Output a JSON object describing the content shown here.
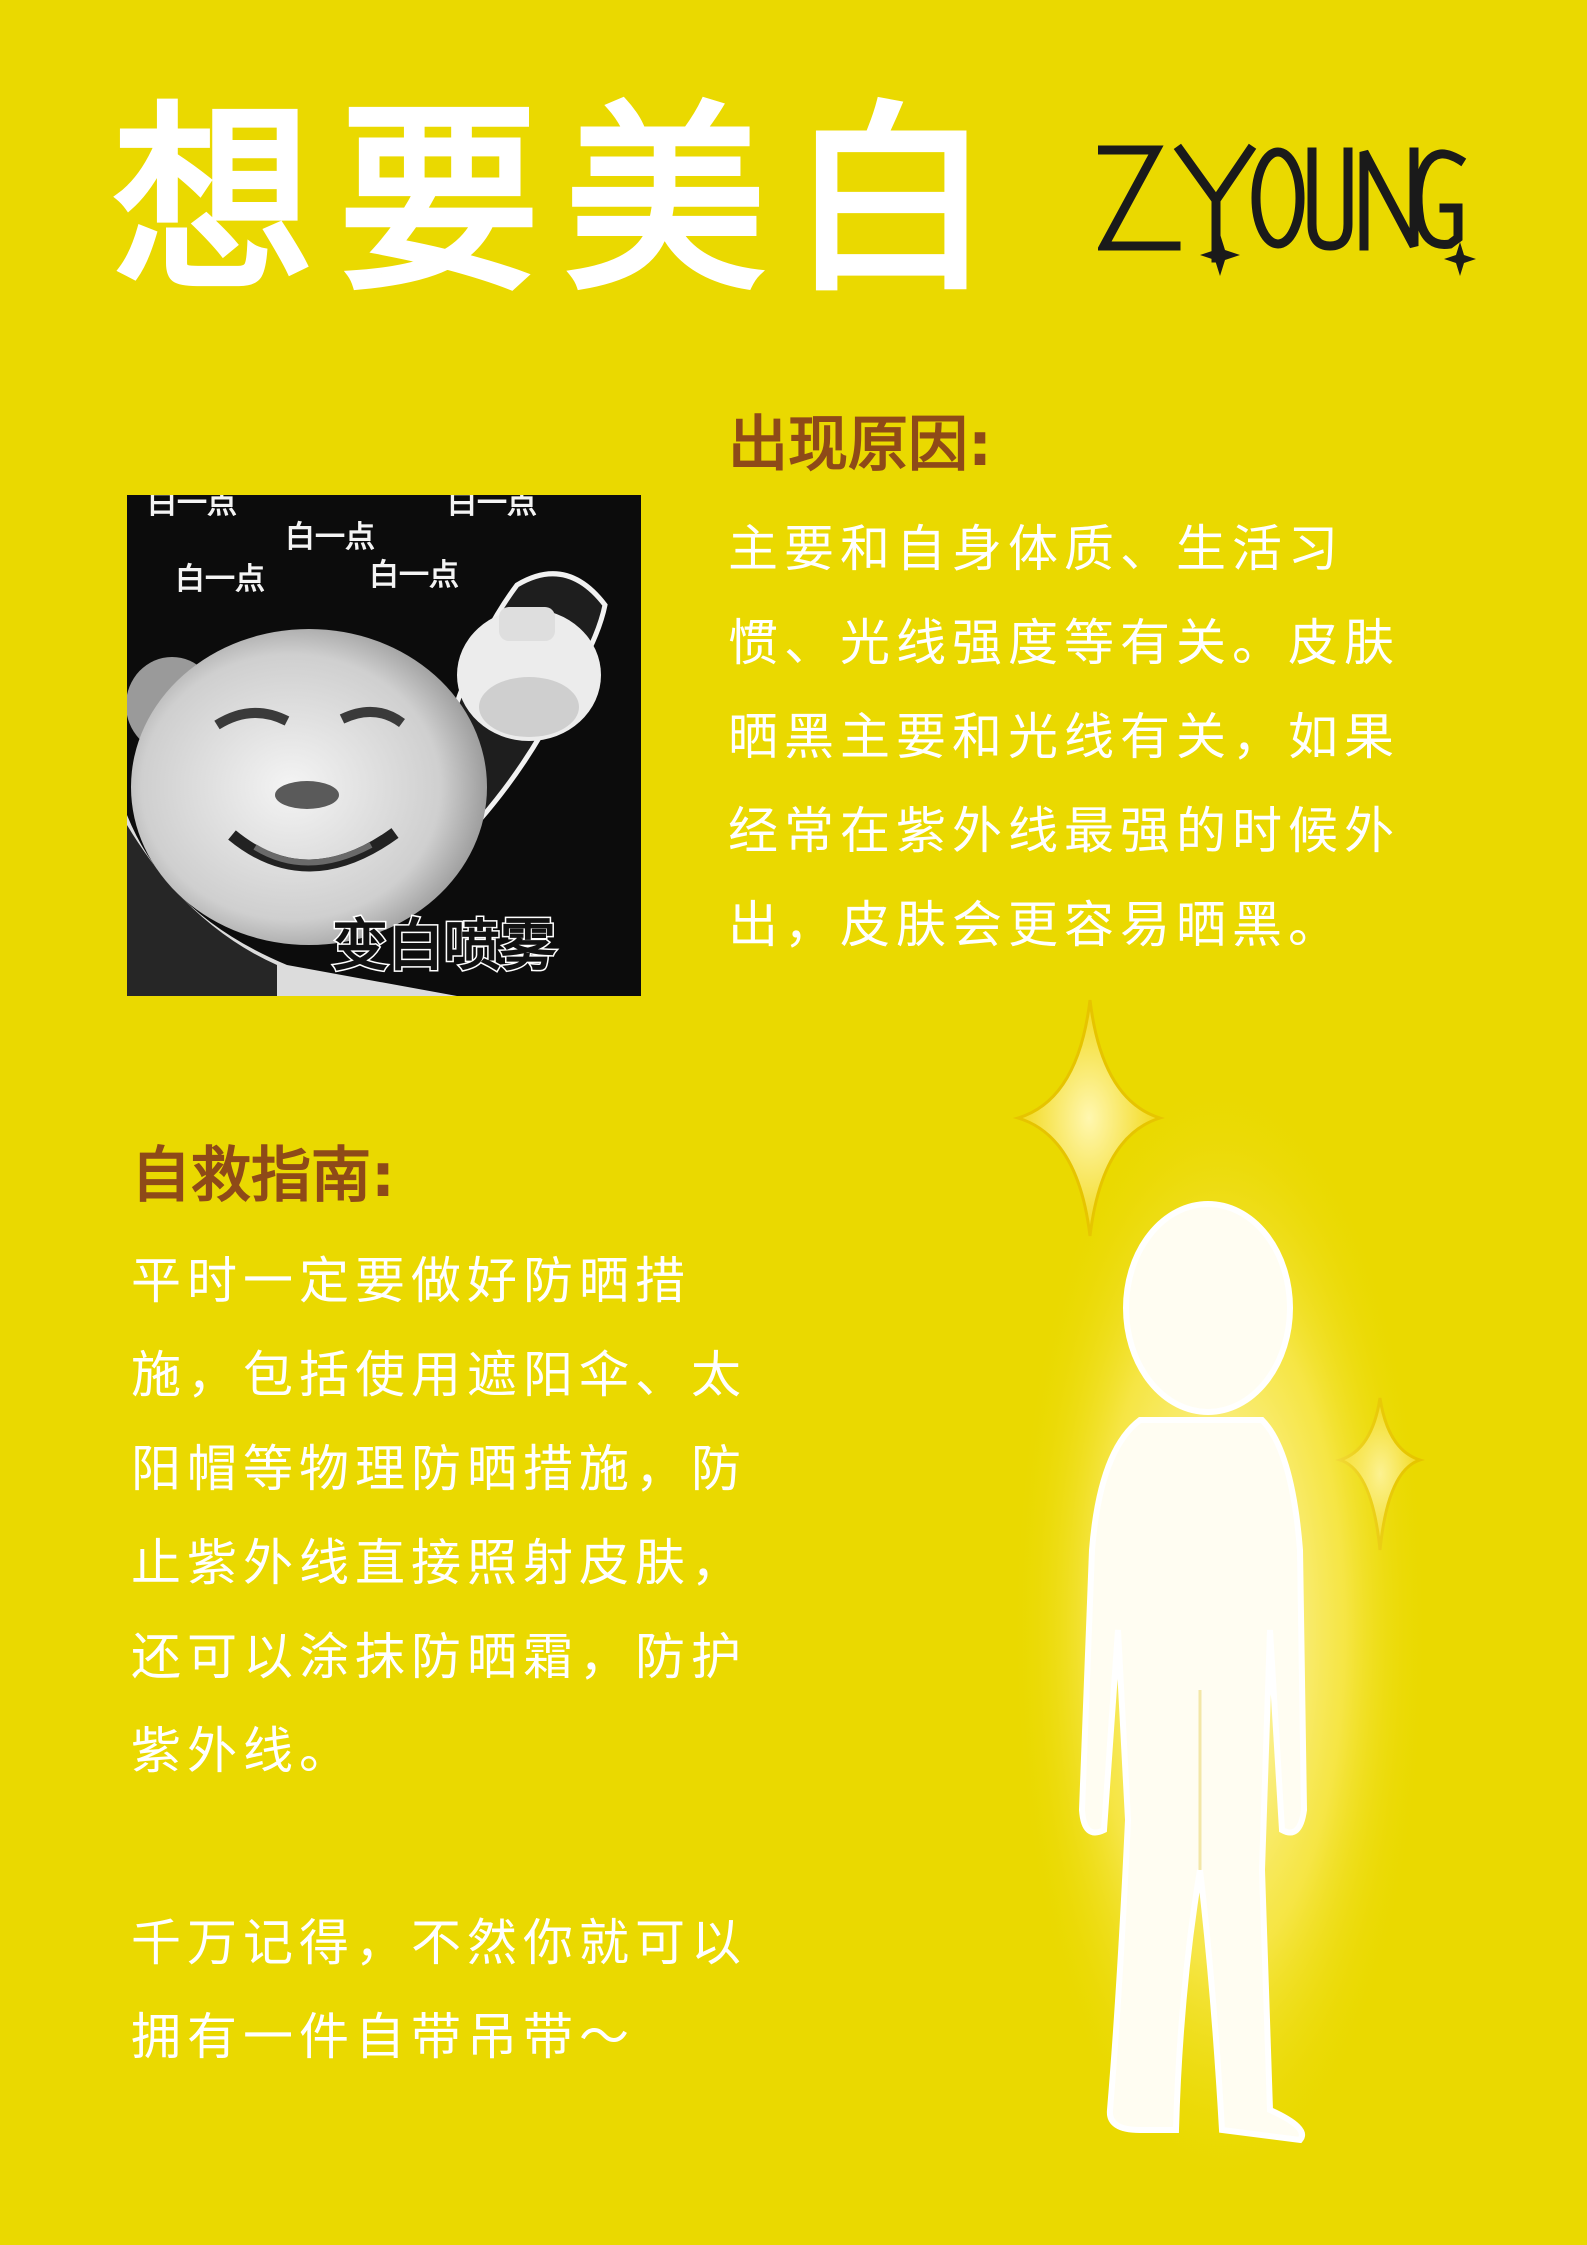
{
  "title": "想要美白",
  "logo_text": "ZYOUNG",
  "meme": {
    "captions": [
      "白一点",
      "白一点",
      "白一点",
      "白一点",
      "白一点"
    ],
    "spray_label": "变白喷雾"
  },
  "cause": {
    "heading": "出现原因:",
    "lines": [
      "主要和自身体质、生活习",
      "惯、光线强度等有关。皮肤",
      "晒黑主要和光线有关，如果",
      "经常在紫外线最强的时候外",
      "出，皮肤会更容易晒黑。"
    ]
  },
  "guide": {
    "heading": "自救指南:",
    "lines": [
      "平时一定要做好防晒措",
      "施，包括使用遮阳伞、太",
      "阳帽等物理防晒措施，防",
      "止紫外线直接照射皮肤，",
      "还可以涂抹防晒霜，防护",
      "紫外线。"
    ]
  },
  "reminder": {
    "lines": [
      "千万记得，不然你就可以",
      "拥有一件自带吊带～"
    ]
  },
  "colors": {
    "background": "#ead900",
    "heading": "#8e4a18",
    "text": "#ffffff"
  }
}
